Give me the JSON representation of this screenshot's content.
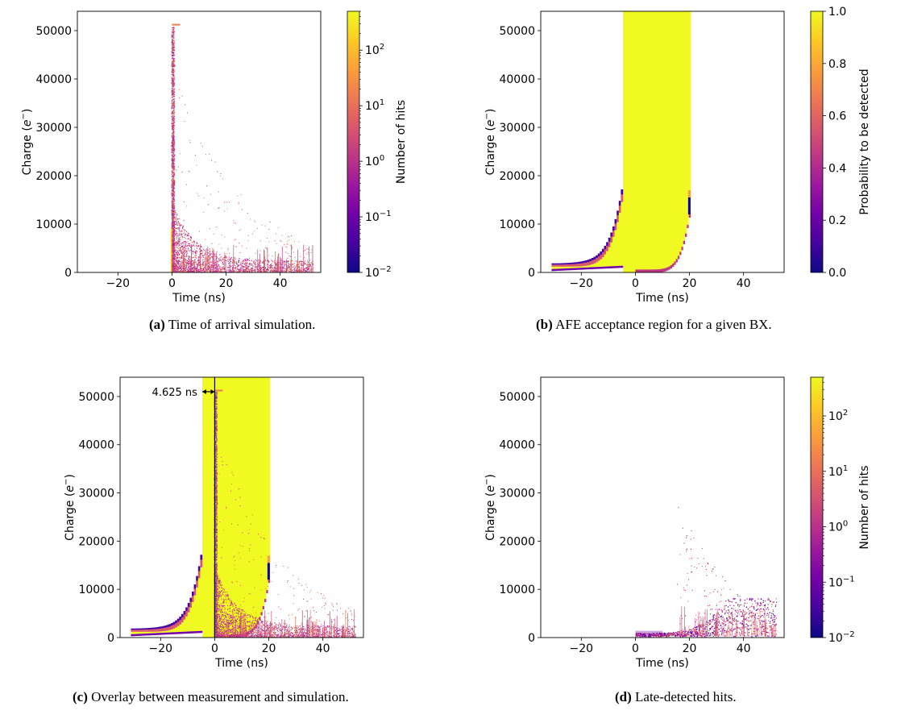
{
  "chart_data": [
    {
      "type": "heatmap",
      "panel": "a",
      "caption_label": "(a)",
      "caption_text": "Time of arrival simulation.",
      "xlabel": "Time (ns)",
      "ylabel_main": "Charge (",
      "ylabel_e": "e",
      "ylabel_sup": "−",
      "ylabel_close": ")",
      "xlim": [
        -35,
        55
      ],
      "ylim": [
        0,
        54000
      ],
      "xticks": [
        -20,
        0,
        20,
        40
      ],
      "xtick_labels": [
        "−20",
        "0",
        "20",
        "40"
      ],
      "yticks": [
        0,
        10000,
        20000,
        30000,
        40000,
        50000
      ],
      "ytick_labels": [
        "0",
        "10000",
        "20000",
        "30000",
        "40000",
        "50000"
      ],
      "colorbar": {
        "scale": "log",
        "label": "Number of hits",
        "range": [
          0.01,
          500
        ],
        "ticks": [
          {
            "base": "10",
            "exp": "−2",
            "v": 0.01
          },
          {
            "base": "10",
            "exp": "−1",
            "v": 0.1
          },
          {
            "base": "10",
            "exp": "0",
            "v": 1
          },
          {
            "base": "10",
            "exp": "1",
            "v": 10
          },
          {
            "base": "10",
            "exp": "2",
            "v": 100
          }
        ]
      }
    },
    {
      "type": "heatmap",
      "panel": "b",
      "caption_label": "(b)",
      "caption_text": "AFE acceptance region for a given BX.",
      "xlabel": "Time (ns)",
      "ylabel_main": "Charge (",
      "ylabel_e": "e",
      "ylabel_sup": "−",
      "ylabel_close": ")",
      "xlim": [
        -35,
        55
      ],
      "ylim": [
        0,
        54000
      ],
      "xticks": [
        -20,
        0,
        20,
        40
      ],
      "xtick_labels": [
        "−20",
        "0",
        "20",
        "40"
      ],
      "yticks": [
        0,
        10000,
        20000,
        30000,
        40000,
        50000
      ],
      "ytick_labels": [
        "0",
        "10000",
        "20000",
        "30000",
        "40000",
        "50000"
      ],
      "acceptance_window_ns": [
        -4.6,
        20.4
      ],
      "colorbar": {
        "scale": "linear",
        "label": "Probability to be detected",
        "range": [
          0,
          1
        ],
        "ticks": [
          {
            "label": "0.0",
            "v": 0
          },
          {
            "label": "0.2",
            "v": 0.2
          },
          {
            "label": "0.4",
            "v": 0.4
          },
          {
            "label": "0.6",
            "v": 0.6
          },
          {
            "label": "0.8",
            "v": 0.8
          },
          {
            "label": "1.0",
            "v": 1
          }
        ]
      }
    },
    {
      "type": "heatmap",
      "panel": "c",
      "caption_label": "(c)",
      "caption_text": "Overlay between measurement and simulation.",
      "xlabel": "Time (ns)",
      "ylabel_main": "Charge (",
      "ylabel_e": "e",
      "ylabel_sup": "−",
      "ylabel_close": ")",
      "xlim": [
        -35,
        55
      ],
      "ylim": [
        0,
        54000
      ],
      "xticks": [
        -20,
        0,
        20,
        40
      ],
      "xtick_labels": [
        "−20",
        "0",
        "20",
        "40"
      ],
      "yticks": [
        0,
        10000,
        20000,
        30000,
        40000,
        50000
      ],
      "ytick_labels": [
        "0",
        "10000",
        "20000",
        "30000",
        "40000",
        "50000"
      ],
      "acceptance_window_ns": [
        -4.6,
        20.4
      ],
      "annotation": {
        "text": "4.625 ns",
        "x_from": -4.625,
        "x_to": 0,
        "y": 51000
      }
    },
    {
      "type": "heatmap",
      "panel": "d",
      "caption_label": "(d)",
      "caption_text": "Late-detected hits.",
      "xlabel": "Time (ns)",
      "ylabel_main": "Charge (",
      "ylabel_e": "e",
      "ylabel_sup": "−",
      "ylabel_close": ")",
      "xlim": [
        -35,
        55
      ],
      "ylim": [
        0,
        54000
      ],
      "xticks": [
        -20,
        0,
        20,
        40
      ],
      "xtick_labels": [
        "−20",
        "0",
        "20",
        "40"
      ],
      "yticks": [
        0,
        10000,
        20000,
        30000,
        40000,
        50000
      ],
      "ytick_labels": [
        "0",
        "10000",
        "20000",
        "30000",
        "40000",
        "50000"
      ],
      "colorbar": {
        "scale": "log",
        "label": "Number of hits",
        "range": [
          0.01,
          500
        ],
        "ticks": [
          {
            "base": "10",
            "exp": "−2",
            "v": 0.01
          },
          {
            "base": "10",
            "exp": "−1",
            "v": 0.1
          },
          {
            "base": "10",
            "exp": "0",
            "v": 1
          },
          {
            "base": "10",
            "exp": "1",
            "v": 10
          },
          {
            "base": "10",
            "exp": "2",
            "v": 100
          }
        ]
      }
    }
  ],
  "colors": {
    "accept_yellow": "#f0f921",
    "plasma": [
      "#0d0887",
      "#46039f",
      "#7201a8",
      "#9c179e",
      "#bd3786",
      "#d8576b",
      "#ed7953",
      "#fb9f3a",
      "#fdca26",
      "#f0f921"
    ]
  }
}
